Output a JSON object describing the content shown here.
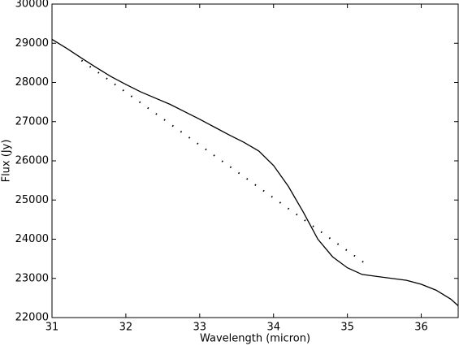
{
  "chart_data": {
    "type": "line",
    "x_label": "Wavelength (micron)",
    "y_label": "Flux (Jy)",
    "series": [
      {
        "style": "solid",
        "color": "#000000",
        "x": [
          31.0,
          31.2,
          31.4,
          31.6,
          31.8,
          32.0,
          32.2,
          32.4,
          32.6,
          32.8,
          33.0,
          33.2,
          33.4,
          33.6,
          33.8,
          34.0,
          34.2,
          34.4,
          34.6,
          34.8,
          35.0,
          35.2,
          35.4,
          35.6,
          35.8,
          36.0,
          36.2,
          36.4,
          36.5
        ],
        "values": [
          29100,
          28870,
          28620,
          28380,
          28150,
          27950,
          27760,
          27600,
          27440,
          27250,
          27060,
          26860,
          26660,
          26470,
          26250,
          25880,
          25350,
          24700,
          24000,
          23550,
          23270,
          23100,
          23050,
          23000,
          22950,
          22850,
          22700,
          22470,
          22300
        ]
      },
      {
        "style": "dotted",
        "color": "#000000",
        "x": [
          31.4,
          35.3
        ],
        "values": [
          28560,
          23300
        ]
      }
    ],
    "xlim": [
      31,
      36.5
    ],
    "ylim": [
      22000,
      30000
    ],
    "xticks": [
      31,
      32,
      33,
      34,
      35,
      36
    ],
    "yticks": [
      22000,
      23000,
      24000,
      25000,
      26000,
      27000,
      28000,
      29000,
      30000
    ]
  }
}
